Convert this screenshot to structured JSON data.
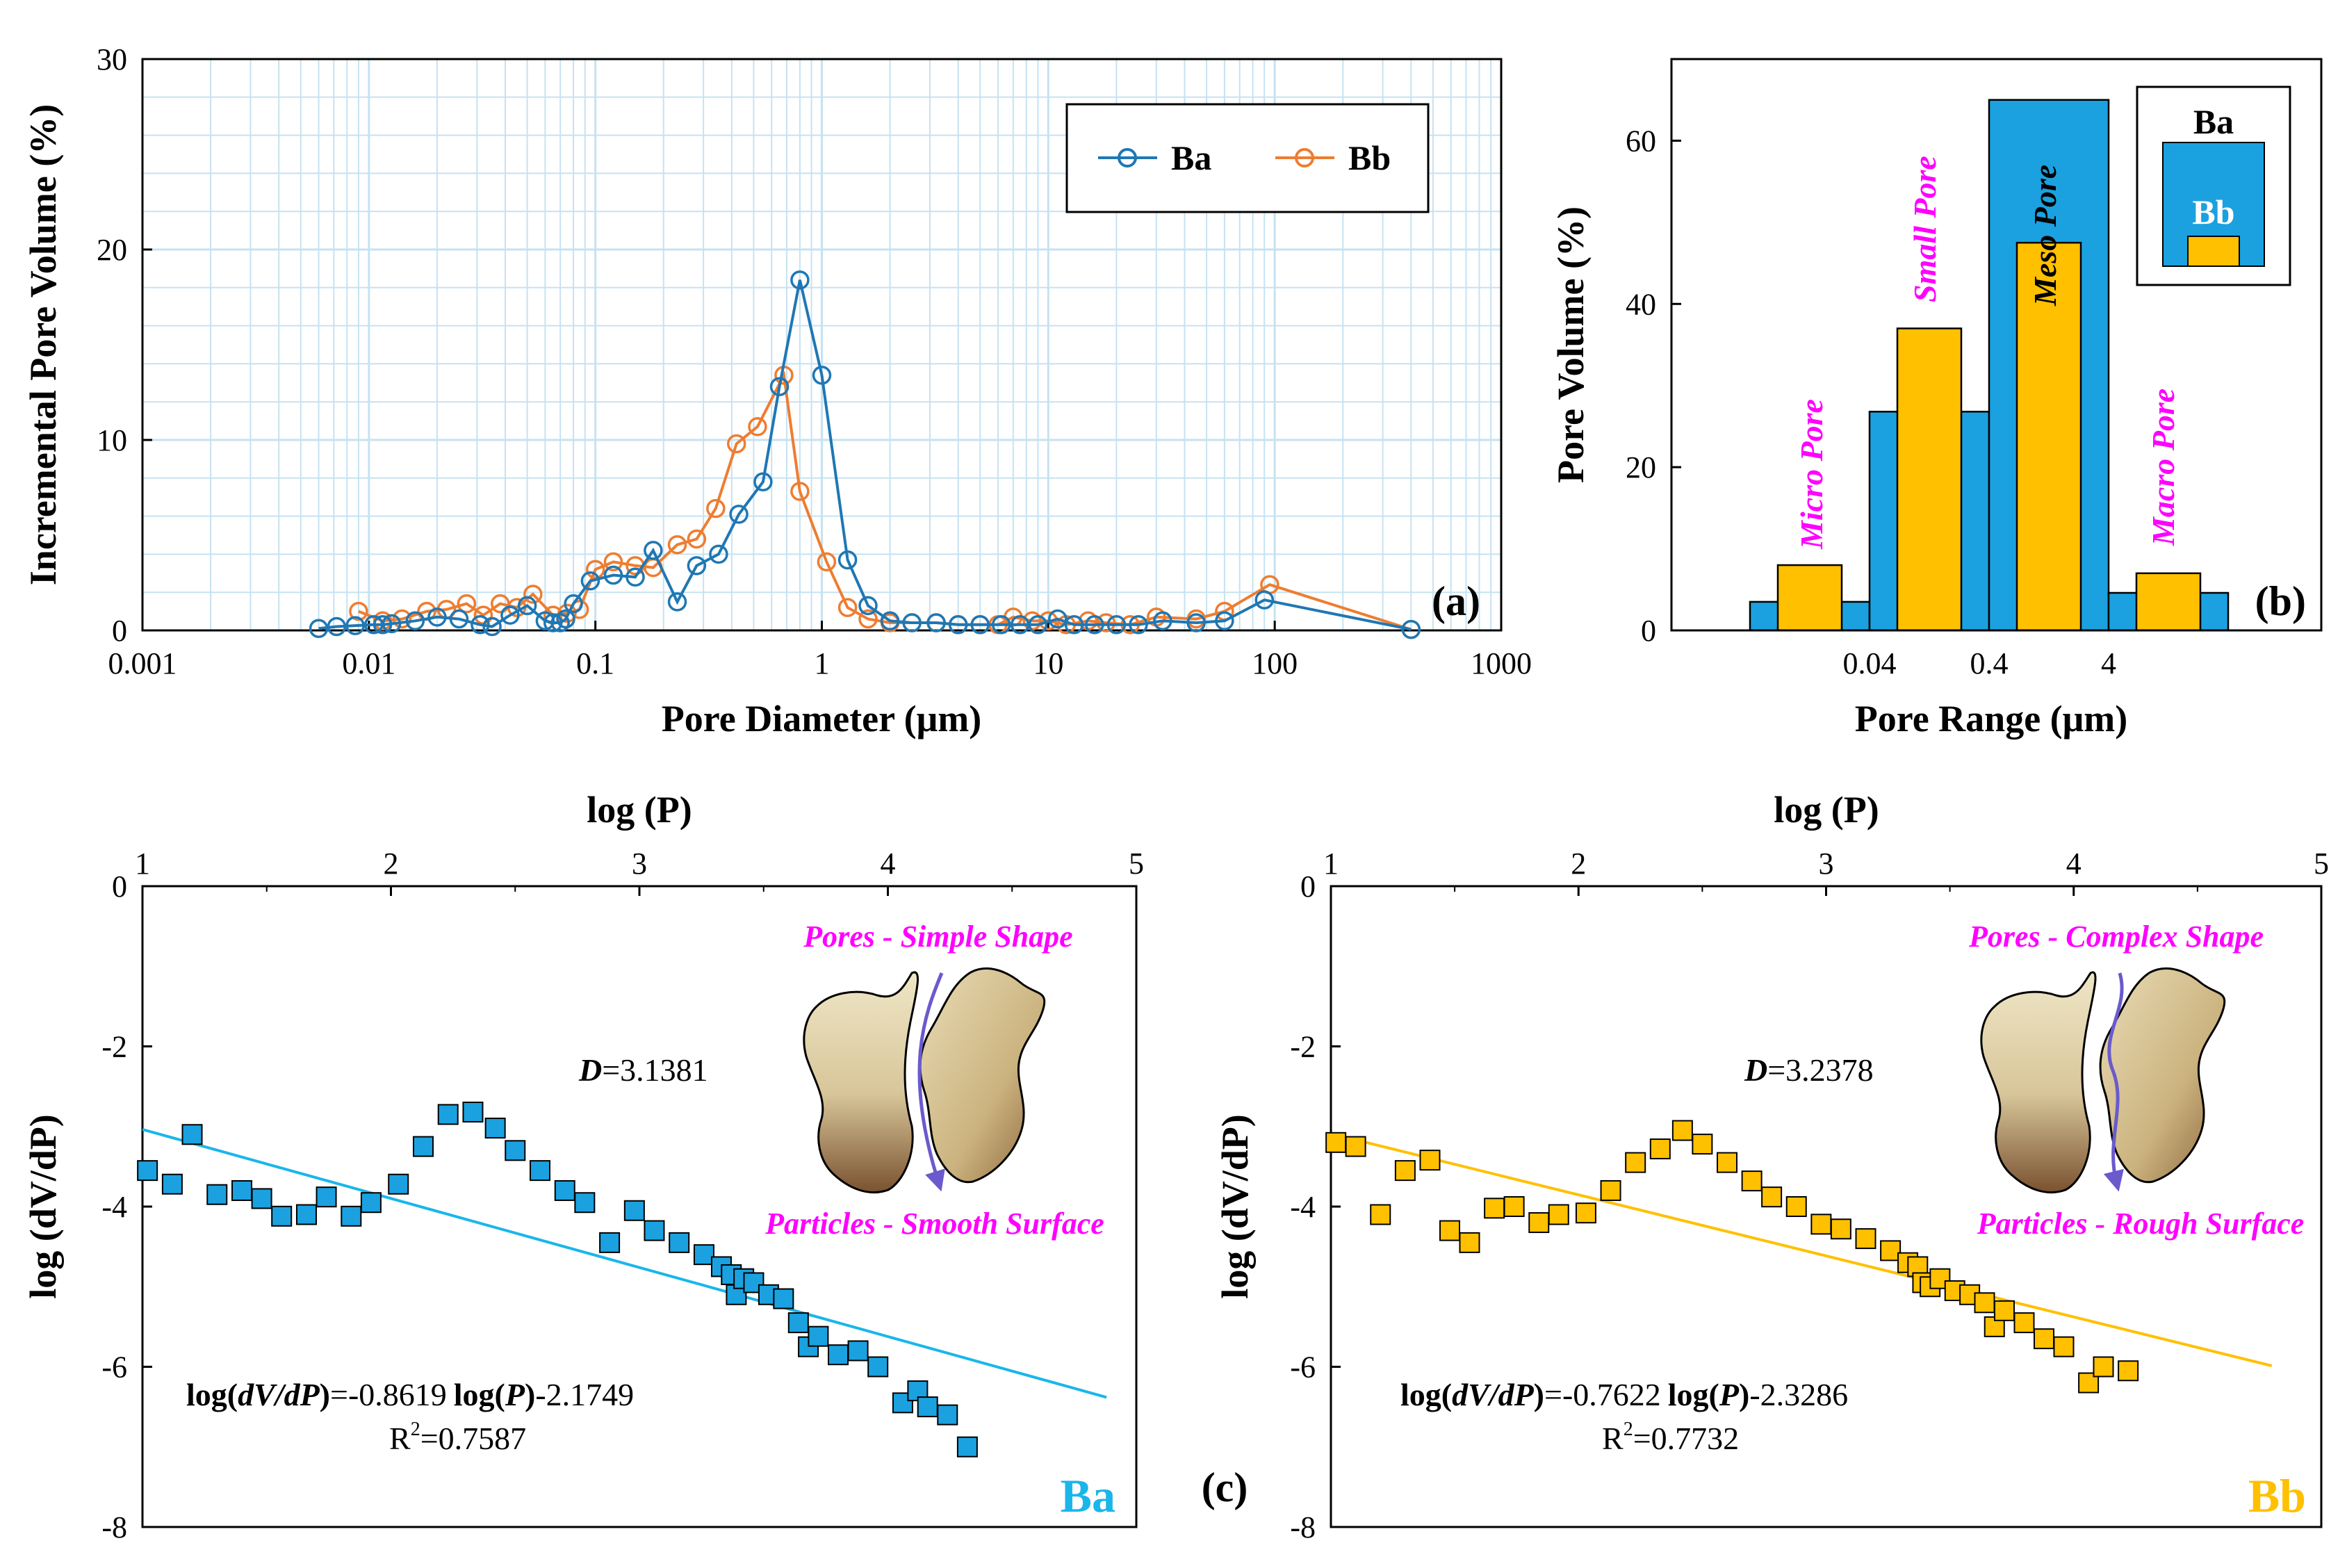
{
  "colors": {
    "ba": "#1f77b4",
    "bb": "#ee7d31",
    "bar_ba": "#1ba1df",
    "bar_bb": "#ffc000",
    "grid": "#c6e2f2",
    "magenta": "#ff00ff",
    "fit_ba": "#1ab6ea",
    "fit_bb": "#ffc000",
    "text_ba": "#1ab6ea",
    "text_bb": "#ffc000",
    "particle_light": "#e8ddbd",
    "particle_dark": "#7a5230",
    "arrow": "#6a5acd"
  },
  "chart_data": [
    {
      "id": "a",
      "type": "line",
      "panel_label": "(a)",
      "xlabel": "Pore Diameter (μm)",
      "ylabel": "Incremental Pore Volume (%)",
      "xscale": "log",
      "xlim": [
        0.001,
        1000
      ],
      "ylim": [
        0,
        30
      ],
      "xticks": [
        0.001,
        0.01,
        0.1,
        1,
        10,
        100,
        1000
      ],
      "xtick_labels": [
        "0.001",
        "0.01",
        "0.1",
        "1",
        "10",
        "100",
        "1000"
      ],
      "yticks": [
        0,
        10,
        20,
        30
      ],
      "ytick_labels": [
        "0",
        "10",
        "20",
        "30"
      ],
      "grid": true,
      "legend": "top-right",
      "series": [
        {
          "name": "Ba",
          "marker": "open-circle",
          "x": [
            0.006,
            0.0072,
            0.0087,
            0.0105,
            0.0115,
            0.0126,
            0.016,
            0.02,
            0.025,
            0.031,
            0.035,
            0.042,
            0.05,
            0.06,
            0.065,
            0.07,
            0.074,
            0.08,
            0.095,
            0.12,
            0.15,
            0.18,
            0.23,
            0.28,
            0.35,
            0.43,
            0.55,
            0.65,
            0.8,
            1.0,
            1.3,
            1.6,
            2.0,
            2.5,
            3.2,
            4.0,
            5.0,
            6.2,
            7.5,
            9.0,
            11,
            13,
            16,
            20,
            25,
            32,
            45,
            60,
            90,
            400
          ],
          "y": [
            0.1,
            0.2,
            0.25,
            0.3,
            0.3,
            0.35,
            0.5,
            0.7,
            0.6,
            0.3,
            0.2,
            0.8,
            1.3,
            0.5,
            0.4,
            0.4,
            0.6,
            1.4,
            2.6,
            2.9,
            2.8,
            4.2,
            1.5,
            3.4,
            4.0,
            6.1,
            7.8,
            12.8,
            18.4,
            13.4,
            3.7,
            1.3,
            0.5,
            0.4,
            0.4,
            0.3,
            0.3,
            0.3,
            0.3,
            0.3,
            0.6,
            0.3,
            0.3,
            0.3,
            0.3,
            0.5,
            0.4,
            0.5,
            1.6,
            0.05
          ]
        },
        {
          "name": "Bb",
          "marker": "open-circle",
          "x": [
            0.009,
            0.0115,
            0.014,
            0.018,
            0.022,
            0.027,
            0.032,
            0.038,
            0.045,
            0.053,
            0.065,
            0.075,
            0.085,
            0.1,
            0.12,
            0.15,
            0.18,
            0.23,
            0.28,
            0.34,
            0.42,
            0.52,
            0.68,
            0.8,
            1.05,
            1.3,
            1.6,
            2.0,
            2.5,
            3.2,
            4.0,
            5.0,
            6.0,
            7.0,
            8.5,
            10,
            12,
            15,
            18,
            23,
            30,
            45,
            60,
            95,
            400
          ],
          "y": [
            1.0,
            0.5,
            0.6,
            1.0,
            1.1,
            1.4,
            0.8,
            1.4,
            1.2,
            1.9,
            0.8,
            0.9,
            1.1,
            3.2,
            3.6,
            3.4,
            3.3,
            4.5,
            4.8,
            6.4,
            9.8,
            10.7,
            13.4,
            7.3,
            3.6,
            1.2,
            0.6,
            0.4,
            0.4,
            0.4,
            0.3,
            0.3,
            0.3,
            0.7,
            0.5,
            0.5,
            0.3,
            0.5,
            0.4,
            0.3,
            0.7,
            0.6,
            1.0,
            2.4,
            0.05
          ]
        }
      ]
    },
    {
      "id": "b",
      "type": "bar",
      "panel_label": "(b)",
      "xlabel": "Pore Range (μm)",
      "ylabel": "Pore Volume (%)",
      "ylim": [
        0,
        70
      ],
      "yticks": [
        0,
        20,
        40,
        60
      ],
      "ytick_labels": [
        "0",
        "20",
        "40",
        "60"
      ],
      "xtick_labels": [
        "0.04",
        "0.4",
        "4"
      ],
      "categories": [
        "Micro Pore",
        "Small Pore",
        "Meso Pore",
        "Macro Pore"
      ],
      "series": [
        {
          "name": "Ba",
          "values": [
            3.5,
            26.8,
            65.0,
            4.6
          ]
        },
        {
          "name": "Bb",
          "values": [
            8.0,
            37.0,
            47.5,
            7.0
          ]
        }
      ],
      "legend": "top-right",
      "legend_labels": [
        "Ba",
        "Bb"
      ]
    },
    {
      "id": "c-ba",
      "type": "scatter",
      "panel_label": "(c)",
      "top_xlabel": "log (P)",
      "ylabel": "log (dV/dP)",
      "xlim": [
        1,
        5
      ],
      "ylim": [
        -8,
        0
      ],
      "xticks": [
        1,
        2,
        3,
        4,
        5
      ],
      "xtick_labels": [
        "1",
        "2",
        "3",
        "4",
        "5"
      ],
      "yticks": [
        0,
        -2,
        -4,
        -6,
        -8
      ],
      "ytick_labels": [
        "0",
        "-2",
        "-4",
        "-6",
        "-8"
      ],
      "series_label": "Ba",
      "marker": "filled-square",
      "x": [
        1.02,
        1.12,
        1.2,
        1.3,
        1.4,
        1.48,
        1.56,
        1.66,
        1.74,
        1.84,
        1.92,
        2.03,
        2.13,
        2.23,
        2.33,
        2.42,
        2.5,
        2.6,
        2.7,
        2.78,
        2.88,
        2.98,
        3.06,
        3.16,
        3.26,
        3.33,
        3.37,
        3.39,
        3.42,
        3.46,
        3.52,
        3.58,
        3.64,
        3.68,
        3.72,
        3.8,
        3.88,
        3.96,
        4.06,
        4.12,
        4.16,
        4.24,
        4.32
      ],
      "y": [
        -3.55,
        -3.72,
        -3.1,
        -3.85,
        -3.8,
        -3.9,
        -4.12,
        -4.1,
        -3.88,
        -4.12,
        -3.95,
        -3.72,
        -3.25,
        -2.85,
        -2.82,
        -3.02,
        -3.3,
        -3.55,
        -3.8,
        -3.95,
        -4.45,
        -4.05,
        -4.3,
        -4.45,
        -4.6,
        -4.75,
        -4.85,
        -5.1,
        -4.9,
        -4.95,
        -5.1,
        -5.15,
        -5.45,
        -5.75,
        -5.62,
        -5.85,
        -5.8,
        -6.0,
        -6.45,
        -6.3,
        -6.5,
        -6.6,
        -7.0
      ],
      "fit": {
        "slope": -0.8619,
        "intercept": -2.1749,
        "x_range": [
          1,
          4.88
        ]
      },
      "equation_d": "=3.1381",
      "equation_fit": "=-0.8619",
      "equation_fit_tail": "-2.1749",
      "r2": "=0.7587",
      "caption_top": "Pores - Simple Shape",
      "caption_bottom": "Particles - Smooth Surface"
    },
    {
      "id": "c-bb",
      "type": "scatter",
      "top_xlabel": "log (P)",
      "ylabel": "log (dV/dP)",
      "xlim": [
        1,
        5
      ],
      "ylim": [
        -8,
        0
      ],
      "xticks": [
        1,
        2,
        3,
        4,
        5
      ],
      "xtick_labels": [
        "1",
        "2",
        "3",
        "4",
        "5"
      ],
      "yticks": [
        0,
        -2,
        -4,
        -6,
        -8
      ],
      "ytick_labels": [
        "0",
        "-2",
        "-4",
        "-6",
        "-8"
      ],
      "series_label": "Bb",
      "marker": "filled-square",
      "x": [
        1.02,
        1.1,
        1.2,
        1.3,
        1.4,
        1.48,
        1.56,
        1.66,
        1.74,
        1.84,
        1.92,
        2.03,
        2.13,
        2.23,
        2.33,
        2.42,
        2.5,
        2.6,
        2.7,
        2.78,
        2.88,
        2.98,
        3.06,
        3.16,
        3.26,
        3.33,
        3.37,
        3.39,
        3.42,
        3.46,
        3.52,
        3.58,
        3.64,
        3.68,
        3.72,
        3.8,
        3.88,
        3.96,
        4.06,
        4.12,
        4.22
      ],
      "y": [
        -3.2,
        -3.25,
        -4.1,
        -3.55,
        -3.42,
        -4.3,
        -4.45,
        -4.02,
        -4.0,
        -4.2,
        -4.1,
        -4.08,
        -3.8,
        -3.45,
        -3.28,
        -3.05,
        -3.22,
        -3.45,
        -3.68,
        -3.88,
        -4.0,
        -4.22,
        -4.28,
        -4.4,
        -4.55,
        -4.7,
        -4.75,
        -4.95,
        -5.0,
        -4.9,
        -5.05,
        -5.1,
        -5.2,
        -5.5,
        -5.3,
        -5.45,
        -5.65,
        -5.75,
        -6.2,
        -6.0,
        -6.05
      ],
      "fit": {
        "slope": -0.7622,
        "intercept": -2.3286,
        "x_range": [
          1,
          4.8
        ]
      },
      "equation_d": "=3.2378",
      "equation_fit": "=-0.7622",
      "equation_fit_tail": "-2.3286",
      "r2": "=0.7732",
      "caption_top": "Pores - Complex Shape",
      "caption_bottom": "Particles - Rough Surface"
    }
  ],
  "labels": {
    "c_label": "(c)",
    "d": "D",
    "log_open": "log(",
    "dvdp": "dV/dP",
    "close": ")",
    "log_p_open": "log(",
    "p": "P",
    "r": "R",
    "two": "2"
  }
}
